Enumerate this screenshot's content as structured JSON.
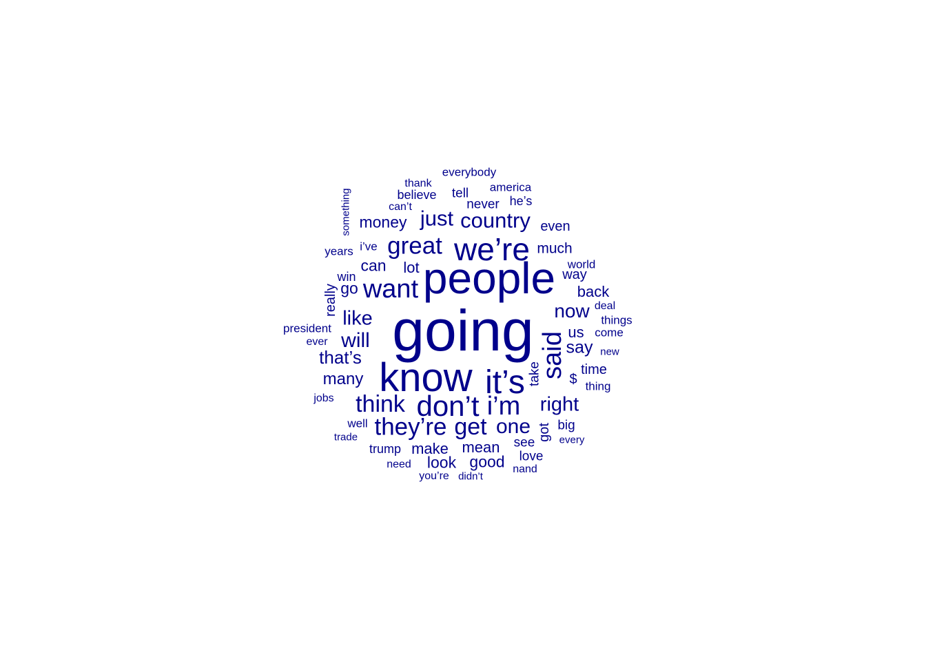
{
  "wordcloud": {
    "color": "#00008b",
    "words": [
      {
        "text": "going",
        "weight": 1.0
      },
      {
        "text": "people",
        "weight": 0.78
      },
      {
        "text": "know",
        "weight": 0.76
      },
      {
        "text": "it’s",
        "weight": 0.62
      },
      {
        "text": "we’re",
        "weight": 0.6
      },
      {
        "text": "don’t",
        "weight": 0.55
      },
      {
        "text": "said",
        "weight": 0.5
      },
      {
        "text": "i’m",
        "weight": 0.5
      },
      {
        "text": "want",
        "weight": 0.47
      },
      {
        "text": "they’re",
        "weight": 0.45
      },
      {
        "text": "great",
        "weight": 0.45
      },
      {
        "text": "think",
        "weight": 0.43
      },
      {
        "text": "get",
        "weight": 0.43
      },
      {
        "text": "country",
        "weight": 0.4
      },
      {
        "text": "just",
        "weight": 0.4
      },
      {
        "text": "one",
        "weight": 0.38
      },
      {
        "text": "right",
        "weight": 0.36
      },
      {
        "text": "will",
        "weight": 0.36
      },
      {
        "text": "like",
        "weight": 0.35
      },
      {
        "text": "now",
        "weight": 0.34
      },
      {
        "text": "that’s",
        "weight": 0.33
      },
      {
        "text": "say",
        "weight": 0.31
      },
      {
        "text": "many",
        "weight": 0.3
      },
      {
        "text": "money",
        "weight": 0.29
      },
      {
        "text": "can",
        "weight": 0.29
      },
      {
        "text": "look",
        "weight": 0.29
      },
      {
        "text": "good",
        "weight": 0.29
      },
      {
        "text": "go",
        "weight": 0.29
      },
      {
        "text": "back",
        "weight": 0.29
      },
      {
        "text": "make",
        "weight": 0.28
      },
      {
        "text": "us",
        "weight": 0.28
      },
      {
        "text": "lot",
        "weight": 0.28
      },
      {
        "text": "mean",
        "weight": 0.27
      },
      {
        "text": "much",
        "weight": 0.26
      },
      {
        "text": "even",
        "weight": 0.26
      },
      {
        "text": "got",
        "weight": 0.26
      },
      {
        "text": "way",
        "weight": 0.26
      },
      {
        "text": "$",
        "weight": 0.25
      },
      {
        "text": "time",
        "weight": 0.25
      },
      {
        "text": "really",
        "weight": 0.25
      },
      {
        "text": "tell",
        "weight": 0.24
      },
      {
        "text": "take",
        "weight": 0.24
      },
      {
        "text": "never",
        "weight": 0.24
      },
      {
        "text": "see",
        "weight": 0.24
      },
      {
        "text": "love",
        "weight": 0.24
      },
      {
        "text": "big",
        "weight": 0.24
      },
      {
        "text": "believe",
        "weight": 0.23
      },
      {
        "text": "he’s",
        "weight": 0.23
      },
      {
        "text": "win",
        "weight": 0.23
      },
      {
        "text": "trump",
        "weight": 0.23
      },
      {
        "text": "america",
        "weight": 0.22
      },
      {
        "text": "president",
        "weight": 0.22
      },
      {
        "text": "world",
        "weight": 0.22
      },
      {
        "text": "things",
        "weight": 0.22
      },
      {
        "text": "come",
        "weight": 0.22
      },
      {
        "text": "thing",
        "weight": 0.22
      },
      {
        "text": "i’ve",
        "weight": 0.22
      },
      {
        "text": "everybody",
        "weight": 0.22
      },
      {
        "text": "years",
        "weight": 0.22
      },
      {
        "text": "well",
        "weight": 0.22
      },
      {
        "text": "can’t",
        "weight": 0.21
      },
      {
        "text": "thank",
        "weight": 0.21
      },
      {
        "text": "deal",
        "weight": 0.21
      },
      {
        "text": "need",
        "weight": 0.21
      },
      {
        "text": "you’re",
        "weight": 0.21
      },
      {
        "text": "ever",
        "weight": 0.21
      },
      {
        "text": "nand",
        "weight": 0.21
      },
      {
        "text": "jobs",
        "weight": 0.21
      },
      {
        "text": "didn’t",
        "weight": 0.2
      },
      {
        "text": "new",
        "weight": 0.2
      },
      {
        "text": "every",
        "weight": 0.2
      },
      {
        "text": "something",
        "weight": 0.19
      },
      {
        "text": "trade",
        "weight": 0.19
      }
    ]
  }
}
